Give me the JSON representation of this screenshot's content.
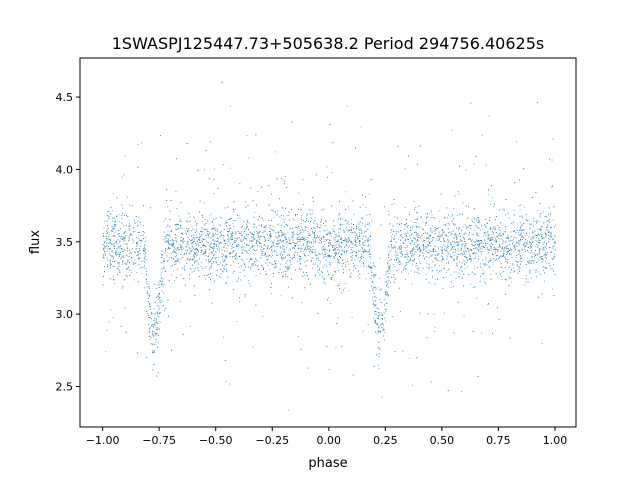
{
  "chart_data": {
    "type": "scatter",
    "title": "1SWASPJ125447.73+505638.2 Period 294756.40625s",
    "xlabel": "phase",
    "ylabel": "flux",
    "xlim": [
      -1.1,
      1.093
    ],
    "ylim": [
      2.22,
      4.77
    ],
    "xticks": [
      -1.0,
      -0.75,
      -0.5,
      -0.25,
      0.0,
      0.25,
      0.5,
      0.75,
      1.0
    ],
    "xtick_labels": [
      "−1.00",
      "−0.75",
      "−0.50",
      "−0.25",
      "0.00",
      "0.25",
      "0.50",
      "0.75",
      "1.00"
    ],
    "yticks": [
      2.5,
      3.0,
      3.5,
      4.0,
      4.5
    ],
    "ytick_labels": [
      "2.5",
      "3.0",
      "3.5",
      "4.0",
      "4.5"
    ],
    "grid": false,
    "marker_color": "#1f77b4",
    "series_binned_median": {
      "x": [
        -1.0,
        -0.98,
        -0.96,
        -0.94,
        -0.92,
        -0.9,
        -0.88,
        -0.86,
        -0.84,
        -0.82,
        -0.8,
        -0.78,
        -0.76,
        -0.74,
        -0.72,
        -0.7,
        -0.68,
        -0.66,
        -0.64,
        -0.62,
        -0.6,
        -0.58,
        -0.56,
        -0.54,
        -0.52,
        -0.5,
        -0.48,
        -0.46,
        -0.44,
        -0.42,
        -0.4,
        -0.38,
        -0.36,
        -0.34,
        -0.32,
        -0.3,
        -0.28,
        -0.26,
        -0.24,
        -0.22,
        -0.2,
        -0.18,
        -0.16,
        -0.14,
        -0.12,
        -0.1,
        -0.08,
        -0.06,
        -0.04,
        -0.02,
        0.0,
        0.02,
        0.04,
        0.06,
        0.08,
        0.1,
        0.12,
        0.14,
        0.16,
        0.18,
        0.2,
        0.22,
        0.24,
        0.26,
        0.28,
        0.3,
        0.32,
        0.34,
        0.36,
        0.38,
        0.4,
        0.42,
        0.44,
        0.46,
        0.48,
        0.5,
        0.52,
        0.54,
        0.56,
        0.58,
        0.6,
        0.62,
        0.64,
        0.66,
        0.68,
        0.7,
        0.72,
        0.74,
        0.76,
        0.78,
        0.8,
        0.82,
        0.84,
        0.86,
        0.88,
        0.9,
        0.92,
        0.94,
        0.96,
        0.98,
        1.0
      ],
      "y": [
        3.48,
        3.48,
        3.48,
        3.48,
        3.48,
        3.48,
        3.48,
        3.48,
        3.48,
        3.48,
        3.1,
        2.85,
        2.95,
        3.3,
        3.48,
        3.48,
        3.48,
        3.48,
        3.48,
        3.48,
        3.48,
        3.48,
        3.48,
        3.48,
        3.48,
        3.48,
        3.48,
        3.48,
        3.48,
        3.48,
        3.48,
        3.48,
        3.48,
        3.48,
        3.48,
        3.48,
        3.48,
        3.48,
        3.48,
        3.48,
        3.48,
        3.48,
        3.48,
        3.48,
        3.48,
        3.48,
        3.48,
        3.48,
        3.48,
        3.48,
        3.48,
        3.48,
        3.48,
        3.48,
        3.48,
        3.48,
        3.48,
        3.48,
        3.48,
        3.48,
        3.1,
        2.85,
        2.95,
        3.3,
        3.48,
        3.48,
        3.48,
        3.48,
        3.48,
        3.48,
        3.48,
        3.48,
        3.48,
        3.48,
        3.48,
        3.48,
        3.48,
        3.48,
        3.48,
        3.48,
        3.48,
        3.48,
        3.48,
        3.48,
        3.48,
        3.48,
        3.48,
        3.48,
        3.48,
        3.48,
        3.48,
        3.48,
        3.48,
        3.48,
        3.48,
        3.48,
        3.48,
        3.48,
        3.48,
        3.48,
        3.48
      ]
    }
  }
}
